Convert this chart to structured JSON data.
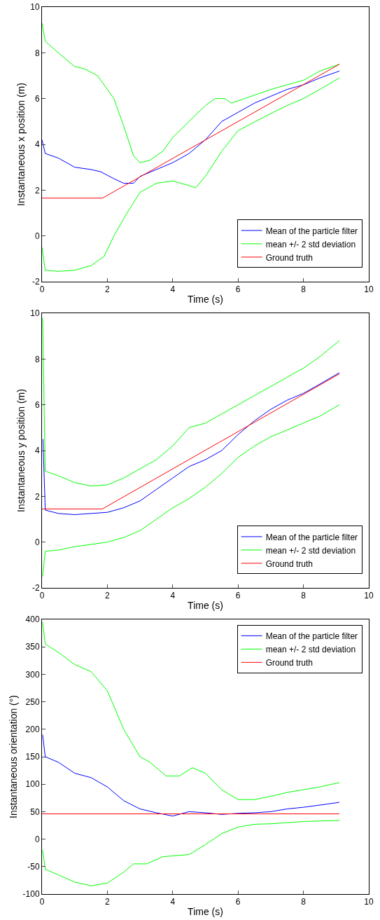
{
  "chart_data": [
    {
      "type": "line",
      "xlabel": "Time (s)",
      "ylabel": "Instantaneous x position (m)",
      "xlim": [
        0,
        10
      ],
      "xticks": [
        0,
        2,
        4,
        6,
        8,
        10
      ],
      "ylim": [
        -2,
        10
      ],
      "yticks": [
        -2,
        0,
        2,
        4,
        6,
        8,
        10
      ],
      "legend": "bottom right",
      "series": [
        {
          "name": "Mean of the particle filter",
          "color": "#0000ff",
          "x": [
            0,
            0.1,
            0.5,
            1,
            1.5,
            1.8,
            2.2,
            2.5,
            2.8,
            3,
            3.5,
            4,
            4.5,
            5,
            5.5,
            6,
            6.5,
            7,
            7.5,
            8,
            8.5,
            9.1
          ],
          "values": [
            4.2,
            3.6,
            3.4,
            3.0,
            2.9,
            2.8,
            2.5,
            2.3,
            2.3,
            2.6,
            2.9,
            3.2,
            3.6,
            4.2,
            5.0,
            5.4,
            5.8,
            6.1,
            6.4,
            6.6,
            6.9,
            7.2
          ]
        },
        {
          "name": "mean +/- 2 std deviation",
          "color": "#00ff00",
          "x": [
            0,
            0.1,
            0.5,
            1,
            1.3,
            1.7,
            2.2,
            2.5,
            2.8,
            3,
            3.3,
            3.7,
            4,
            4.5,
            5,
            5.3,
            5.6,
            5.8,
            6.2,
            7,
            8,
            8.5,
            9.1
          ],
          "values": [
            9.3,
            8.5,
            8.0,
            7.4,
            7.3,
            7.0,
            6.0,
            4.8,
            3.5,
            3.2,
            3.3,
            3.7,
            4.3,
            5.0,
            5.7,
            6.0,
            6.0,
            5.8,
            6.0,
            6.4,
            6.8,
            7.2,
            7.5
          ]
        },
        {
          "color": "#00ff00",
          "x": [
            0,
            0.1,
            0.5,
            1,
            1.5,
            1.9,
            2.2,
            2.6,
            3,
            3.5,
            4,
            4.5,
            4.7,
            5,
            5.5,
            6,
            6.8,
            7.5,
            8,
            8.5,
            9.1
          ],
          "values": [
            -0.5,
            -1.5,
            -1.55,
            -1.5,
            -1.3,
            -0.9,
            0,
            1.0,
            1.9,
            2.3,
            2.4,
            2.2,
            2.1,
            2.6,
            3.7,
            4.6,
            5.2,
            5.7,
            6.0,
            6.4,
            6.9
          ]
        },
        {
          "name": "Ground truth",
          "color": "#ff0000",
          "x": [
            0,
            1.85,
            9.1
          ],
          "values": [
            1.65,
            1.65,
            7.5
          ]
        }
      ]
    },
    {
      "type": "line",
      "xlabel": "Time (s)",
      "ylabel": "Instantaneous y position (m)",
      "xlim": [
        0,
        10
      ],
      "xticks": [
        0,
        2,
        4,
        6,
        8,
        10
      ],
      "ylim": [
        -2,
        10
      ],
      "yticks": [
        -2,
        0,
        2,
        4,
        6,
        8,
        10
      ],
      "legend": "bottom right",
      "series": [
        {
          "name": "Mean of the particle filter",
          "color": "#0000ff",
          "x": [
            0.03,
            0.1,
            0.5,
            1,
            1.5,
            2,
            2.5,
            3,
            3.5,
            4,
            4.5,
            5,
            5.5,
            6,
            6.5,
            7,
            7.5,
            8,
            8.5,
            9.1
          ],
          "values": [
            4.5,
            1.4,
            1.25,
            1.2,
            1.25,
            1.3,
            1.5,
            1.8,
            2.3,
            2.8,
            3.3,
            3.6,
            4.0,
            4.7,
            5.3,
            5.8,
            6.2,
            6.5,
            6.9,
            7.4
          ]
        },
        {
          "name": "mean +/- 2 std deviation",
          "color": "#00ff00",
          "x": [
            0.02,
            0.1,
            0.5,
            1,
            1.5,
            2,
            2.5,
            3,
            3.5,
            4,
            4.5,
            5,
            5.5,
            6,
            6.5,
            7,
            7.5,
            8,
            8.5,
            9.1
          ],
          "values": [
            9.8,
            3.1,
            2.9,
            2.6,
            2.45,
            2.5,
            2.8,
            3.2,
            3.6,
            4.2,
            5.0,
            5.2,
            5.6,
            6.0,
            6.4,
            6.8,
            7.2,
            7.6,
            8.1,
            8.8
          ]
        },
        {
          "color": "#00ff00",
          "x": [
            0.02,
            0.1,
            0.5,
            1,
            1.5,
            2,
            2.5,
            3,
            3.5,
            4,
            4.5,
            5,
            5.5,
            6,
            6.5,
            7,
            7.5,
            8,
            8.5,
            9.1
          ],
          "values": [
            -1.5,
            -0.4,
            -0.35,
            -0.2,
            -0.1,
            0,
            0.2,
            0.5,
            1.0,
            1.5,
            1.9,
            2.4,
            3.0,
            3.7,
            4.2,
            4.6,
            4.9,
            5.2,
            5.5,
            6.0
          ]
        },
        {
          "name": "Ground truth",
          "color": "#ff0000",
          "x": [
            0,
            1.85,
            9.1
          ],
          "values": [
            1.45,
            1.45,
            7.35
          ]
        }
      ]
    },
    {
      "type": "line",
      "xlabel": "Time (s)",
      "ylabel": "Instantaneous orientation (°)",
      "xlim": [
        0,
        10
      ],
      "xticks": [
        0,
        2,
        4,
        6,
        8,
        10
      ],
      "ylim": [
        -100,
        400
      ],
      "yticks": [
        -100,
        -50,
        0,
        50,
        100,
        150,
        200,
        250,
        300,
        350,
        400
      ],
      "legend": "top right",
      "series": [
        {
          "name": "Mean of the particle filter",
          "color": "#0000ff",
          "x": [
            0.02,
            0.1,
            0.5,
            1,
            1.5,
            2,
            2.5,
            3,
            3.5,
            4,
            4.5,
            5,
            5.5,
            6,
            6.5,
            7,
            7.5,
            8,
            8.5,
            9.1
          ],
          "values": [
            190,
            150,
            140,
            120,
            112,
            95,
            70,
            55,
            48,
            42,
            50,
            48,
            45,
            47,
            48,
            50,
            55,
            58,
            62,
            67
          ]
        },
        {
          "name": "mean +/- 2 std deviation",
          "color": "#00ff00",
          "x": [
            0.02,
            0.1,
            0.5,
            1,
            1.5,
            2,
            2.5,
            3,
            3.3,
            3.8,
            4.2,
            4.6,
            5,
            5.5,
            6,
            6.5,
            7,
            7.5,
            8,
            8.5,
            9.1
          ],
          "values": [
            395,
            355,
            340,
            318,
            305,
            270,
            200,
            150,
            140,
            115,
            115,
            130,
            120,
            90,
            72,
            72,
            78,
            85,
            90,
            95,
            103
          ]
        },
        {
          "color": "#00ff00",
          "x": [
            0.02,
            0.1,
            0.5,
            1,
            1.5,
            2,
            2.5,
            2.8,
            3.2,
            3.7,
            4.5,
            5,
            5.5,
            6,
            6.5,
            7,
            7.5,
            8,
            8.5,
            9.1
          ],
          "values": [
            -20,
            -55,
            -65,
            -78,
            -85,
            -80,
            -60,
            -45,
            -45,
            -32,
            -28,
            -10,
            10,
            22,
            27,
            28,
            30,
            32,
            33,
            34
          ]
        },
        {
          "name": "Ground truth",
          "color": "#ff0000",
          "x": [
            0,
            9.1
          ],
          "values": [
            46,
            46
          ]
        }
      ]
    }
  ]
}
